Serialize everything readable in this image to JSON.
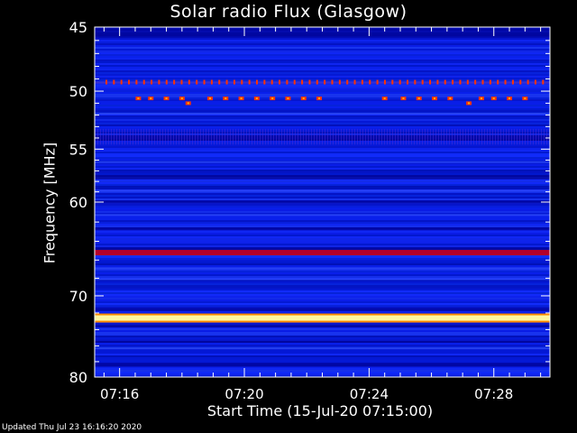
{
  "chart_data": {
    "type": "heatmap",
    "title": "Solar radio Flux (Glasgow)",
    "xlabel": "Start Time (15-Jul-20 07:15:00)",
    "ylabel": "Frequency [MHz]",
    "x_ticks": [
      "07:16",
      "07:20",
      "07:24",
      "07:28"
    ],
    "x_tick_minutes": [
      1,
      5,
      9,
      13
    ],
    "xlim_minutes": [
      0.2,
      14.8
    ],
    "y_ticks": [
      45,
      50,
      55,
      60,
      70,
      80
    ],
    "ylim": [
      45,
      80
    ],
    "y_scale": "log",
    "colors": {
      "background": "#0a1ae0",
      "dark_band": "#00008f",
      "hot_band": "#fff8a0",
      "red_band": "#b4002a",
      "marker": "#ff3300"
    },
    "bands": [
      {
        "freq_mhz": 49.3,
        "level": "spiky"
      },
      {
        "freq_mhz": 50.6,
        "level": "bursts"
      },
      {
        "freq_mhz": 65.2,
        "level": "high"
      },
      {
        "freq_mhz": 72.6,
        "level": "saturated"
      }
    ],
    "bursts": [
      {
        "minute": 1.6,
        "freq_mhz": 50.6
      },
      {
        "minute": 2.0,
        "freq_mhz": 50.6
      },
      {
        "minute": 2.5,
        "freq_mhz": 50.6
      },
      {
        "minute": 3.0,
        "freq_mhz": 50.6
      },
      {
        "minute": 3.2,
        "freq_mhz": 51.0
      },
      {
        "minute": 3.9,
        "freq_mhz": 50.6
      },
      {
        "minute": 4.4,
        "freq_mhz": 50.6
      },
      {
        "minute": 4.9,
        "freq_mhz": 50.6
      },
      {
        "minute": 5.4,
        "freq_mhz": 50.6
      },
      {
        "minute": 5.9,
        "freq_mhz": 50.6
      },
      {
        "minute": 6.4,
        "freq_mhz": 50.6
      },
      {
        "minute": 6.9,
        "freq_mhz": 50.6
      },
      {
        "minute": 7.4,
        "freq_mhz": 50.6
      },
      {
        "minute": 9.5,
        "freq_mhz": 50.6
      },
      {
        "minute": 10.1,
        "freq_mhz": 50.6
      },
      {
        "minute": 10.6,
        "freq_mhz": 50.6
      },
      {
        "minute": 11.1,
        "freq_mhz": 50.6
      },
      {
        "minute": 11.6,
        "freq_mhz": 50.6
      },
      {
        "minute": 12.2,
        "freq_mhz": 51.0
      },
      {
        "minute": 12.6,
        "freq_mhz": 50.6
      },
      {
        "minute": 13.0,
        "freq_mhz": 50.6
      },
      {
        "minute": 13.5,
        "freq_mhz": 50.6
      },
      {
        "minute": 14.0,
        "freq_mhz": 50.6
      }
    ]
  },
  "footer": "Updated Thu Jul 23 16:16:20 2020"
}
